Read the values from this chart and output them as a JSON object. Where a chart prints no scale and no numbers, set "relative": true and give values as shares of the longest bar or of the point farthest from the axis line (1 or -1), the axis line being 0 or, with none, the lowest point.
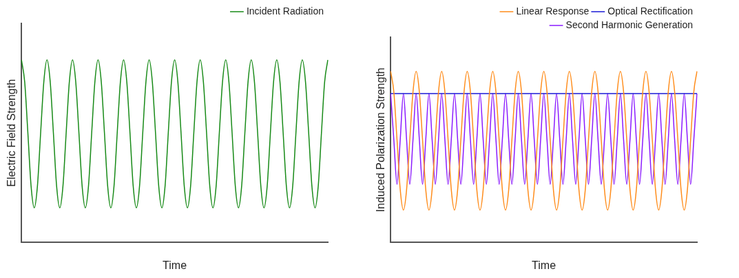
{
  "chart_data": [
    {
      "type": "line",
      "relative": true,
      "xlabel": "Time",
      "ylabel": "Electric Field Strength",
      "legend": "top right",
      "categories": [
        null,
        null,
        null,
        null,
        null,
        null,
        null,
        null,
        null,
        null,
        null,
        null,
        null,
        null,
        null,
        null,
        null,
        null,
        null,
        null,
        null,
        null,
        null,
        null,
        null,
        null,
        null,
        null,
        null,
        null,
        null,
        null,
        null,
        null,
        null,
        null,
        null,
        null,
        null,
        null,
        null,
        null,
        null,
        null,
        null,
        null,
        null,
        null,
        null,
        null,
        null,
        null,
        null,
        null,
        null,
        null,
        null,
        null,
        null,
        null,
        null,
        null,
        null,
        null,
        null,
        null,
        null,
        null,
        null,
        null,
        null,
        null,
        null,
        null,
        null,
        null,
        null,
        null,
        null,
        null,
        null,
        null,
        null,
        null,
        null,
        null,
        null,
        null,
        null,
        null,
        null,
        null,
        null,
        null,
        null,
        null,
        null
      ],
      "series": [
        {
          "name": "Incident Radiation",
          "color": "#178a17",
          "values": [
            1,
            0.88,
            0.6,
            0.31,
            0.19,
            0.31,
            0.6,
            0.88,
            1,
            0.88,
            0.6,
            0.31,
            0.19,
            0.31,
            0.6,
            0.88,
            1,
            0.88,
            0.6,
            0.31,
            0.19,
            0.31,
            0.6,
            0.88,
            1,
            0.88,
            0.6,
            0.31,
            0.19,
            0.31,
            0.6,
            0.88,
            1,
            0.88,
            0.6,
            0.31,
            0.19,
            0.31,
            0.6,
            0.88,
            1,
            0.88,
            0.6,
            0.31,
            0.19,
            0.31,
            0.6,
            0.88,
            1,
            0.88,
            0.6,
            0.31,
            0.19,
            0.31,
            0.6,
            0.88,
            1,
            0.88,
            0.6,
            0.31,
            0.19,
            0.31,
            0.6,
            0.88,
            1,
            0.88,
            0.6,
            0.31,
            0.19,
            0.31,
            0.6,
            0.88,
            1,
            0.88,
            0.6,
            0.31,
            0.19,
            0.31,
            0.6,
            0.88,
            1,
            0.88,
            0.6,
            0.31,
            0.19,
            0.31,
            0.6,
            0.88,
            1,
            0.88,
            0.6,
            0.31,
            0.19,
            0.31,
            0.6,
            0.88,
            1
          ]
        }
      ]
    },
    {
      "type": "line",
      "relative": true,
      "xlabel": "Time",
      "ylabel": "Induced Polarization Strength",
      "legend": "top right",
      "categories": [
        null,
        null,
        null,
        null,
        null,
        null,
        null,
        null,
        null,
        null,
        null,
        null,
        null,
        null,
        null,
        null,
        null,
        null,
        null,
        null,
        null,
        null,
        null,
        null,
        null,
        null,
        null,
        null,
        null,
        null,
        null,
        null,
        null,
        null,
        null,
        null,
        null,
        null,
        null,
        null,
        null,
        null,
        null,
        null,
        null,
        null,
        null,
        null,
        null,
        null,
        null,
        null,
        null,
        null,
        null,
        null,
        null,
        null,
        null,
        null,
        null,
        null,
        null,
        null,
        null,
        null,
        null,
        null,
        null,
        null,
        null,
        null,
        null,
        null,
        null,
        null,
        null,
        null,
        null,
        null,
        null,
        null,
        null,
        null,
        null,
        null,
        null,
        null,
        null,
        null,
        null,
        null,
        null,
        null,
        null,
        null,
        null
      ],
      "series": [
        {
          "name": "Linear Response",
          "color": "#ff8c1a",
          "values": [
            1,
            0.88,
            0.6,
            0.31,
            0.19,
            0.31,
            0.6,
            0.88,
            1,
            0.88,
            0.6,
            0.31,
            0.19,
            0.31,
            0.6,
            0.88,
            1,
            0.88,
            0.6,
            0.31,
            0.19,
            0.31,
            0.6,
            0.88,
            1,
            0.88,
            0.6,
            0.31,
            0.19,
            0.31,
            0.6,
            0.88,
            1,
            0.88,
            0.6,
            0.31,
            0.19,
            0.31,
            0.6,
            0.88,
            1,
            0.88,
            0.6,
            0.31,
            0.19,
            0.31,
            0.6,
            0.88,
            1,
            0.88,
            0.6,
            0.31,
            0.19,
            0.31,
            0.6,
            0.88,
            1,
            0.88,
            0.6,
            0.31,
            0.19,
            0.31,
            0.6,
            0.88,
            1,
            0.88,
            0.6,
            0.31,
            0.19,
            0.31,
            0.6,
            0.88,
            1,
            0.88,
            0.6,
            0.31,
            0.19,
            0.31,
            0.6,
            0.88,
            1,
            0.88,
            0.6,
            0.31,
            0.19,
            0.31,
            0.6,
            0.88,
            1,
            0.88,
            0.6,
            0.31,
            0.19,
            0.31,
            0.6,
            0.88,
            1
          ]
        },
        {
          "name": "Optical Rectification",
          "color": "#1a1ad6",
          "values": [
            0.87,
            0.87,
            0.87,
            0.87,
            0.87,
            0.87,
            0.87,
            0.87,
            0.87,
            0.87,
            0.87,
            0.87,
            0.87,
            0.87,
            0.87,
            0.87,
            0.87,
            0.87,
            0.87,
            0.87,
            0.87,
            0.87,
            0.87,
            0.87,
            0.87,
            0.87,
            0.87,
            0.87,
            0.87,
            0.87,
            0.87,
            0.87,
            0.87,
            0.87,
            0.87,
            0.87,
            0.87,
            0.87,
            0.87,
            0.87,
            0.87,
            0.87,
            0.87,
            0.87,
            0.87,
            0.87,
            0.87,
            0.87,
            0.87,
            0.87,
            0.87,
            0.87,
            0.87,
            0.87,
            0.87,
            0.87,
            0.87,
            0.87,
            0.87,
            0.87,
            0.87,
            0.87,
            0.87,
            0.87,
            0.87,
            0.87,
            0.87,
            0.87,
            0.87,
            0.87,
            0.87,
            0.87,
            0.87,
            0.87,
            0.87,
            0.87,
            0.87,
            0.87,
            0.87,
            0.87,
            0.87,
            0.87,
            0.87,
            0.87,
            0.87,
            0.87,
            0.87,
            0.87,
            0.87,
            0.87,
            0.87,
            0.87,
            0.87,
            0.87,
            0.87,
            0.87,
            0.87
          ]
        },
        {
          "name": "Second Harmonic Generation",
          "color": "#8a1aff",
          "values": [
            0.87,
            0.6,
            0.34,
            0.6,
            0.87,
            0.6,
            0.34,
            0.6,
            0.87,
            0.6,
            0.34,
            0.6,
            0.87,
            0.6,
            0.34,
            0.6,
            0.87,
            0.6,
            0.34,
            0.6,
            0.87,
            0.6,
            0.34,
            0.6,
            0.87,
            0.6,
            0.34,
            0.6,
            0.87,
            0.6,
            0.34,
            0.6,
            0.87,
            0.6,
            0.34,
            0.6,
            0.87,
            0.6,
            0.34,
            0.6,
            0.87,
            0.6,
            0.34,
            0.6,
            0.87,
            0.6,
            0.34,
            0.6,
            0.87,
            0.6,
            0.34,
            0.6,
            0.87,
            0.6,
            0.34,
            0.6,
            0.87,
            0.6,
            0.34,
            0.6,
            0.87,
            0.6,
            0.34,
            0.6,
            0.87,
            0.6,
            0.34,
            0.6,
            0.87,
            0.6,
            0.34,
            0.6,
            0.87,
            0.6,
            0.34,
            0.6,
            0.87,
            0.6,
            0.34,
            0.6,
            0.87,
            0.6,
            0.34,
            0.6,
            0.87,
            0.6,
            0.34,
            0.6,
            0.87,
            0.6,
            0.34,
            0.6,
            0.87,
            0.6,
            0.34,
            0.6,
            0.87
          ]
        }
      ]
    }
  ]
}
